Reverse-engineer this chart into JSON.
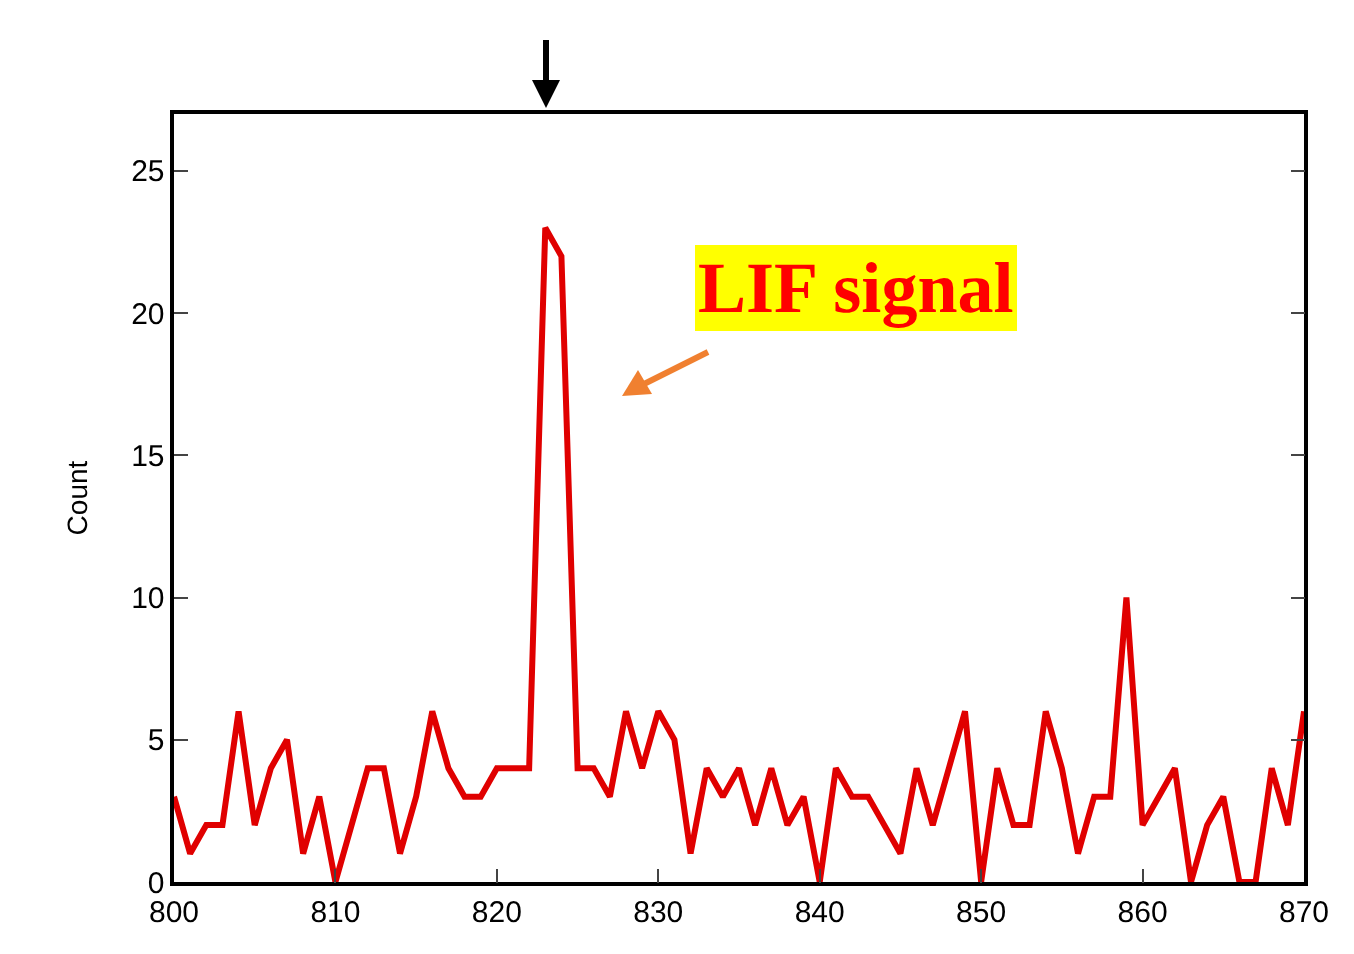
{
  "chart_data": {
    "type": "line",
    "ylabel": "Count",
    "x": [
      800,
      801,
      802,
      803,
      804,
      805,
      806,
      807,
      808,
      809,
      810,
      811,
      812,
      813,
      814,
      815,
      816,
      817,
      818,
      819,
      820,
      821,
      822,
      823,
      824,
      825,
      826,
      827,
      828,
      829,
      830,
      831,
      832,
      833,
      834,
      835,
      836,
      837,
      838,
      839,
      840,
      841,
      842,
      843,
      844,
      845,
      846,
      847,
      848,
      849,
      850,
      851,
      852,
      853,
      854,
      855,
      856,
      857,
      858,
      859,
      860,
      861,
      862,
      863,
      864,
      865,
      866,
      867,
      868,
      869,
      870
    ],
    "series": [
      {
        "color": "#e00000",
        "values": [
          3,
          1,
          2,
          2,
          6,
          2,
          4,
          5,
          1,
          3,
          0,
          2,
          4,
          4,
          1,
          3,
          6,
          4,
          3,
          3,
          4,
          4,
          4,
          23,
          22,
          4,
          4,
          3,
          6,
          4,
          6,
          5,
          1,
          4,
          3,
          4,
          2,
          4,
          2,
          3,
          0,
          4,
          3,
          3,
          2,
          1,
          4,
          2,
          4,
          6,
          0,
          4,
          2,
          2,
          6,
          4,
          1,
          3,
          3,
          10,
          2,
          3,
          4,
          0,
          2,
          3,
          0,
          0,
          4,
          2,
          6
        ]
      }
    ],
    "xlim": [
      800,
      870
    ],
    "ylim": [
      0,
      27
    ],
    "xticks": [
      800,
      810,
      820,
      830,
      840,
      850,
      860,
      870
    ],
    "yticks": [
      0,
      5,
      10,
      15,
      20,
      25
    ],
    "annotations": [
      "LIF signal"
    ],
    "grid": false,
    "marker": "none",
    "line_style": "solid"
  }
}
